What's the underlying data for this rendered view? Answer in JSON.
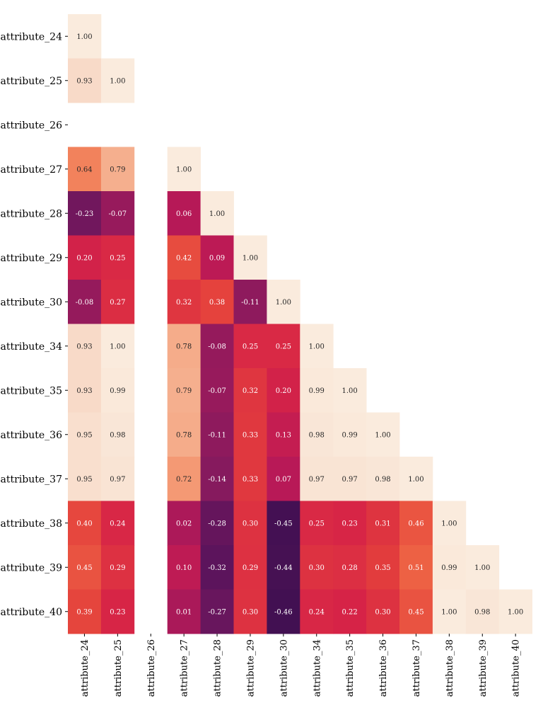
{
  "chart_data": {
    "type": "heatmap",
    "title": "",
    "xlabel": "",
    "ylabel": "",
    "triangle": "lower",
    "value_range": [
      -0.5,
      1.0
    ],
    "colormap": "rocket",
    "annotation_format": "2 decimals",
    "labels": [
      "attribute_24",
      "attribute_25",
      "attribute_26",
      "attribute_27",
      "attribute_28",
      "attribute_29",
      "attribute_30",
      "attribute_34",
      "attribute_35",
      "attribute_36",
      "attribute_37",
      "attribute_38",
      "attribute_39",
      "attribute_40"
    ],
    "matrix": [
      [
        1.0
      ],
      [
        0.93,
        1.0
      ],
      [
        null,
        null,
        null
      ],
      [
        0.64,
        0.79,
        null,
        1.0
      ],
      [
        -0.23,
        -0.07,
        null,
        0.06,
        1.0
      ],
      [
        0.2,
        0.25,
        null,
        0.42,
        0.09,
        1.0
      ],
      [
        -0.08,
        0.27,
        null,
        0.32,
        0.38,
        -0.11,
        1.0
      ],
      [
        0.93,
        1.0,
        null,
        0.78,
        -0.08,
        0.25,
        0.25,
        1.0
      ],
      [
        0.93,
        0.99,
        null,
        0.79,
        -0.07,
        0.32,
        0.2,
        0.99,
        1.0
      ],
      [
        0.95,
        0.98,
        null,
        0.78,
        -0.11,
        0.33,
        0.13,
        0.98,
        0.99,
        1.0
      ],
      [
        0.95,
        0.97,
        null,
        0.72,
        -0.14,
        0.33,
        0.07,
        0.97,
        0.97,
        0.98,
        1.0
      ],
      [
        0.4,
        0.24,
        null,
        0.02,
        -0.28,
        0.3,
        -0.45,
        0.25,
        0.23,
        0.31,
        0.46,
        1.0
      ],
      [
        0.45,
        0.29,
        null,
        0.1,
        -0.32,
        0.29,
        -0.44,
        0.3,
        0.28,
        0.35,
        0.51,
        0.99,
        1.0
      ],
      [
        0.39,
        0.23,
        null,
        0.01,
        -0.27,
        0.3,
        -0.46,
        0.24,
        0.22,
        0.3,
        0.45,
        1.0,
        0.98,
        1.0
      ]
    ]
  }
}
